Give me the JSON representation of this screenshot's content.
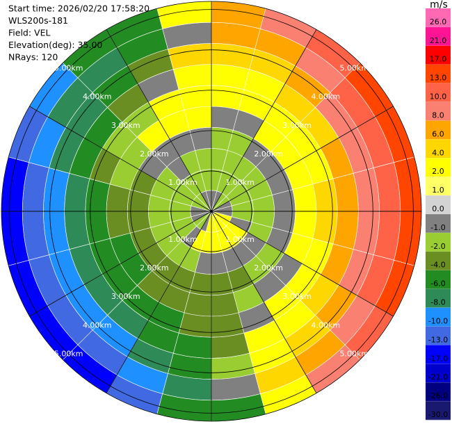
{
  "header": {
    "lines": [
      "Start time: 2026/02/20 17:58:20",
      "WLS200s-181",
      "Field: VEL",
      "Elevation(deg): 35.00",
      "NRays: 120"
    ]
  },
  "chart_data": {
    "type": "ppi",
    "range_km": [
      0,
      5.2
    ],
    "rings": [
      {
        "value": 1,
        "label": "1.00km"
      },
      {
        "value": 2,
        "label": "2.00km"
      },
      {
        "value": 3,
        "label": "3.00km"
      },
      {
        "value": 4,
        "label": "4.00km"
      },
      {
        "value": 5,
        "label": "5.00km"
      }
    ],
    "azimuths": [
      7.5,
      22.5,
      37.5,
      52.5,
      67.5,
      82.5,
      97.5,
      112.5,
      127.5,
      142.5,
      157.5,
      172.5,
      187.5,
      202.5,
      217.5,
      232.5,
      247.5,
      262.5,
      277.5,
      292.5,
      307.5,
      322.5,
      337.5,
      352.5
    ],
    "values": [
      [
        -0.5,
        -1.5,
        -1.5,
        -1.5,
        -0.5,
        3,
        3,
        5,
        7,
        6
      ],
      [
        -0.5,
        -1.5,
        -1.5,
        -1.5,
        -0.5,
        3,
        3,
        5,
        7,
        9
      ],
      [
        -1.5,
        -1.5,
        -1.5,
        -0.5,
        3,
        3,
        5,
        7,
        9,
        12
      ],
      [
        -1.5,
        -1.5,
        -1.5,
        -0.5,
        3,
        3,
        5,
        8,
        11,
        15
      ],
      [
        -0.5,
        -1.5,
        -1.5,
        -0.5,
        3,
        3,
        7,
        9,
        12,
        15
      ],
      [
        -0.5,
        -1.5,
        -1.5,
        -0.5,
        3,
        5,
        7,
        9,
        12,
        16
      ],
      [
        -0.5,
        -1.5,
        -1.5,
        -0.5,
        3,
        5,
        7,
        9,
        12,
        16
      ],
      [
        3,
        -0.5,
        -1.5,
        -0.5,
        3,
        3,
        7,
        9,
        11,
        14
      ],
      [
        3,
        3,
        -0.5,
        -1.5,
        -0.5,
        3,
        5,
        7,
        9,
        12
      ],
      [
        3,
        3,
        -0.5,
        -1.5,
        -0.5,
        3,
        3,
        5,
        7,
        9
      ],
      [
        3,
        3,
        -0.5,
        -3,
        -1.5,
        -0.5,
        3,
        3,
        5,
        3
      ],
      [
        3,
        3,
        -0.5,
        -3,
        -3,
        -3,
        -3,
        -1.5,
        -0.5,
        -5
      ],
      [
        3,
        3,
        -0.5,
        -3,
        -3,
        -3,
        -5,
        -5,
        -7,
        -5
      ],
      [
        -0.5,
        3,
        -1.5,
        -3,
        -3,
        -5,
        -5,
        -7,
        -9,
        -11
      ],
      [
        -1.5,
        -0.5,
        -1.5,
        -3,
        -3,
        -5,
        -7,
        -9,
        -11,
        -14
      ],
      [
        -1.5,
        -1.5,
        -1.5,
        -3,
        -5,
        -5,
        -7,
        -9,
        -11,
        -14
      ],
      [
        -0.5,
        -1.5,
        -1.5,
        -3,
        -5,
        -5,
        -7,
        -9,
        -11,
        -14
      ],
      [
        -0.5,
        -1.5,
        -1.5,
        -3,
        -3,
        -5,
        -7,
        -9,
        -11,
        -14
      ],
      [
        -0.5,
        -1.5,
        -1.5,
        -3,
        -3,
        -5,
        -7,
        -9,
        -11,
        -14
      ],
      [
        -1.5,
        -1.5,
        -1.5,
        -3,
        -1.5,
        -3,
        -5,
        -7,
        -9,
        -11
      ],
      [
        -1.5,
        -1.5,
        -1.5,
        -0.5,
        -1.5,
        -1.5,
        -5,
        -7,
        -7,
        -9
      ],
      [
        -1.5,
        -1.5,
        -0.5,
        -0.5,
        3,
        -1.5,
        -3,
        -5,
        -7,
        -6
      ],
      [
        -0.5,
        -1.5,
        -1.5,
        -0.5,
        3,
        3,
        -0.5,
        -3,
        -5,
        -5
      ],
      [
        -0.5,
        -1.5,
        -1.5,
        -0.5,
        3,
        3,
        3,
        5,
        -0.5,
        3
      ]
    ],
    "colorbar": {
      "label": "m/s",
      "colors": [
        "#ff69b4",
        "#ff1493",
        "#ff0000",
        "#ff4500",
        "#ff6347",
        "#fa8072",
        "#ffa500",
        "#ffd700",
        "#ffff00",
        "#ffff66",
        "#d3d3d3",
        "#808080",
        "#9acd32",
        "#6b8e23",
        "#228b22",
        "#2e8b57",
        "#1e90ff",
        "#4169e1",
        "#0000ff",
        "#0000cd",
        "#000080",
        "#191970"
      ],
      "ticks": [
        {
          "value": 26,
          "label": "26.0"
        },
        {
          "value": 21,
          "label": "21.0"
        },
        {
          "value": 17,
          "label": "17.0"
        },
        {
          "value": 13,
          "label": "13.0"
        },
        {
          "value": 10,
          "label": "10.0"
        },
        {
          "value": 8,
          "label": "8.0"
        },
        {
          "value": 6,
          "label": "6.0"
        },
        {
          "value": 4,
          "label": "4.0"
        },
        {
          "value": 2,
          "label": "2.0"
        },
        {
          "value": 1,
          "label": "1.0"
        },
        {
          "value": 0,
          "label": "0.0"
        },
        {
          "value": -1,
          "label": "-1.0"
        },
        {
          "value": -2,
          "label": "-2.0"
        },
        {
          "value": -4,
          "label": "-4.0"
        },
        {
          "value": -6,
          "label": "-6.0"
        },
        {
          "value": -8,
          "label": "-8.0"
        },
        {
          "value": -10,
          "label": "-10.0"
        },
        {
          "value": -13,
          "label": "-13.0"
        },
        {
          "value": -17,
          "label": "-17.0"
        },
        {
          "value": -21,
          "label": "-21.0"
        },
        {
          "value": -26,
          "label": "-26.0"
        },
        {
          "value": -30,
          "label": "-30.0"
        }
      ]
    }
  }
}
